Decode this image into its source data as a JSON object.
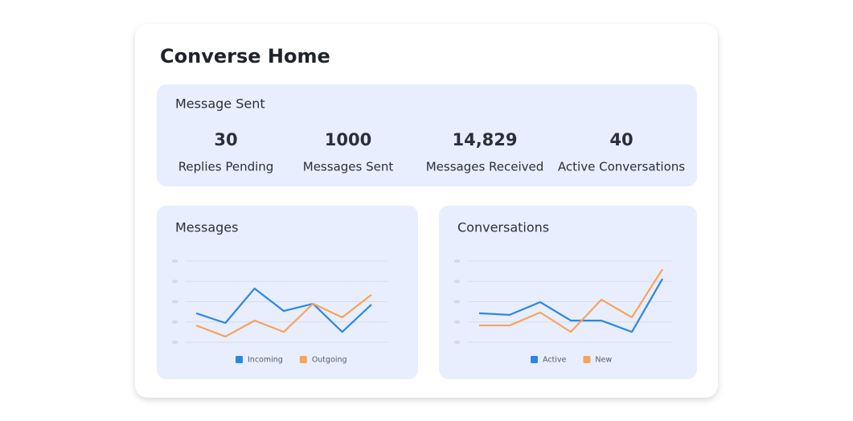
{
  "header": {
    "title": "Converse Home"
  },
  "summary": {
    "title": "Message Sent",
    "stats": [
      {
        "value": 30,
        "label": "Replies Pending"
      },
      {
        "value": 1000,
        "label": "Messages Sent"
      },
      {
        "value": "14,829",
        "label": "Messages Received"
      },
      {
        "value": 40,
        "label": "Active Conversations"
      }
    ]
  },
  "charts": [
    {
      "chart_data": {
        "type": "line",
        "title": "Messages",
        "categories": [
          null,
          null,
          null,
          null,
          null,
          null,
          null
        ],
        "ylim": [
          0,
          4
        ],
        "yticks": [
          0,
          1,
          2,
          3,
          4
        ],
        "grid": true,
        "legend": "bottom",
        "series": [
          {
            "name": "Incoming",
            "color": "#2b86e6",
            "values": [
              1.43,
              0.95,
              2.65,
              1.54,
              1.9,
              0.51,
              1.86
            ]
          },
          {
            "name": "Outgoing",
            "color": "#f7a35c",
            "values": [
              0.83,
              0.28,
              1.07,
              0.51,
              1.9,
              1.23,
              2.34
            ]
          }
        ]
      }
    },
    {
      "chart_data": {
        "type": "line",
        "title": "Conversations",
        "categories": [
          null,
          null,
          null,
          null,
          null,
          null,
          null
        ],
        "ylim": [
          0,
          4
        ],
        "yticks": [
          0,
          1,
          2,
          3,
          4
        ],
        "grid": true,
        "legend": "bottom",
        "series": [
          {
            "name": "Active",
            "color": "#2b86e6",
            "values": [
              1.43,
              1.35,
              1.98,
              1.07,
              1.07,
              0.51,
              3.13
            ]
          },
          {
            "name": "New",
            "color": "#f7a35c",
            "values": [
              0.83,
              0.83,
              1.47,
              0.51,
              2.1,
              1.23,
              3.6
            ]
          }
        ]
      }
    }
  ]
}
